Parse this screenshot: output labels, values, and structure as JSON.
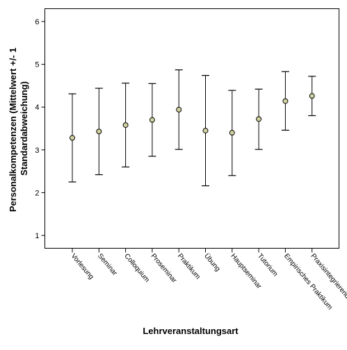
{
  "chart_data": {
    "type": "errorbar",
    "xlabel": "Lehrveranstaltungsart",
    "ylabel": "Personalkompetenzen (Mittelwert +/- 1 Standardabweichung)",
    "ylabel_lines": [
      "Personalkompetenzen (Mittelwert +/- 1",
      "Standardabweichung)"
    ],
    "ylim": [
      0.7,
      6.3
    ],
    "yticks": [
      1,
      2,
      3,
      4,
      5,
      6
    ],
    "grid": false,
    "categories": [
      "Vorlesung",
      "Seminar",
      "Colloquium",
      "Proseminar",
      "Praktikum",
      "Übung",
      "Hauptseminar",
      "Tutorium",
      "Empirisches Praktikum",
      "Praxisintegrierende"
    ],
    "means": [
      3.28,
      3.43,
      3.58,
      3.7,
      3.94,
      3.45,
      3.4,
      3.72,
      4.14,
      4.26
    ],
    "lower": [
      2.25,
      2.42,
      2.6,
      2.85,
      3.01,
      2.16,
      2.4,
      3.01,
      3.46,
      3.8
    ],
    "upper": [
      4.31,
      4.44,
      4.56,
      4.55,
      4.87,
      4.74,
      4.39,
      4.42,
      4.83,
      4.72
    ],
    "marker_color": "#d2d2a0",
    "line_color": "#000000"
  }
}
